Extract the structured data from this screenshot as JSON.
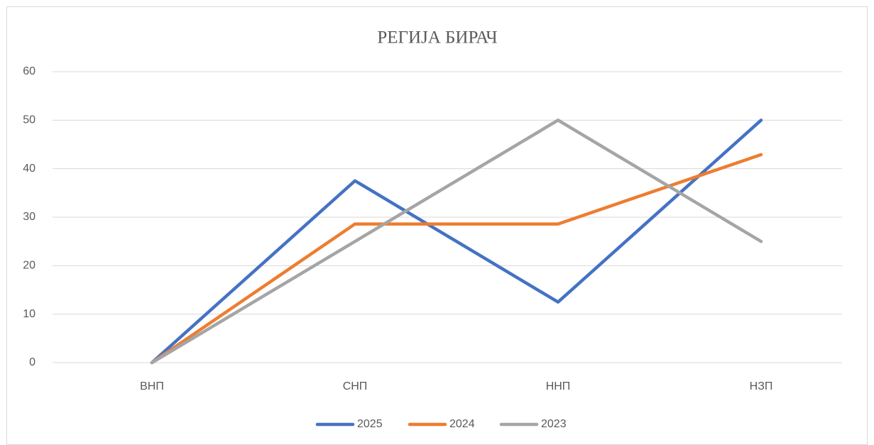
{
  "chart_data": {
    "type": "line",
    "title": "РЕГИЈА БИРАЧ",
    "categories": [
      "ВНП",
      "СНП",
      "ННП",
      "НЗП"
    ],
    "series": [
      {
        "name": "2025",
        "color": "#4472c4",
        "values": [
          0,
          37.5,
          12.5,
          50
        ]
      },
      {
        "name": "2024",
        "color": "#ed7d31",
        "values": [
          0,
          28.6,
          28.6,
          42.9
        ]
      },
      {
        "name": "2023",
        "color": "#a5a5a5",
        "values": [
          0,
          25,
          50,
          25
        ]
      }
    ],
    "ylim": [
      0,
      60
    ],
    "yticks": [
      0,
      10,
      20,
      30,
      40,
      50,
      60
    ],
    "grid": true,
    "legend": "bottom"
  }
}
